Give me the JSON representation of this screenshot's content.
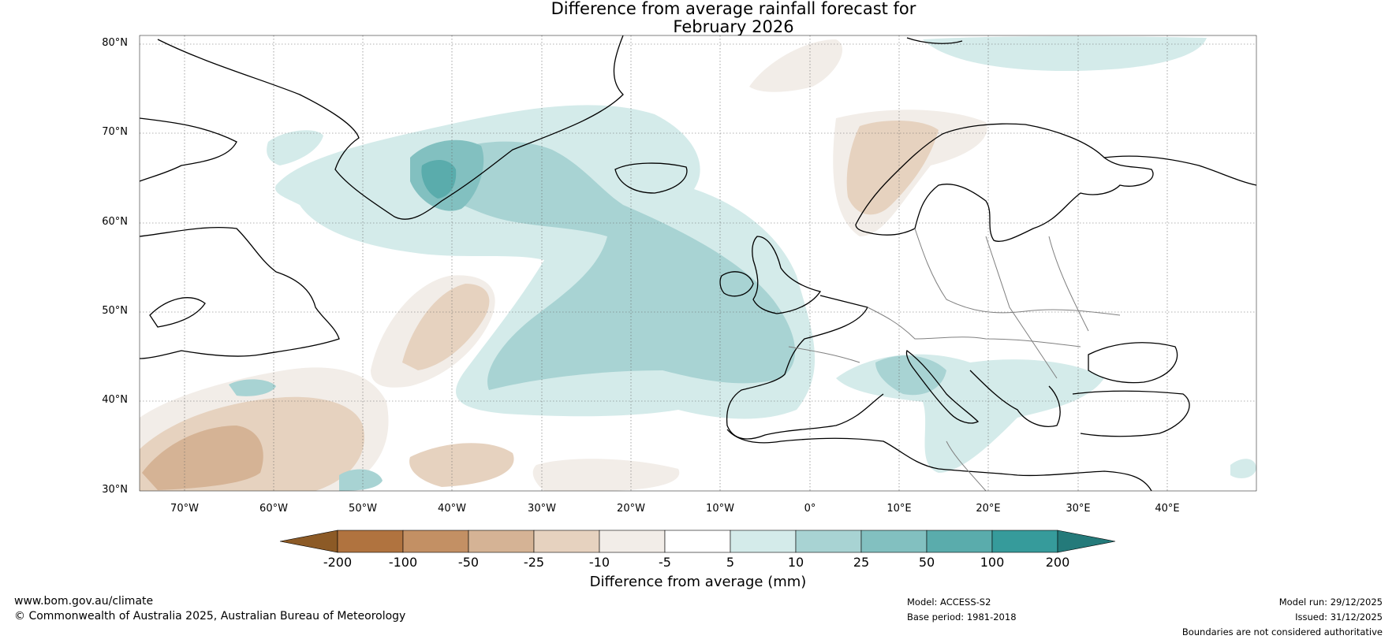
{
  "title": {
    "line1": "Difference from average rainfall forecast for",
    "line2": "February 2026"
  },
  "map": {
    "lat_labels": [
      "80°N",
      "70°N",
      "60°N",
      "50°N",
      "40°N",
      "30°N"
    ],
    "lon_labels": [
      "70°W",
      "60°W",
      "50°W",
      "40°W",
      "30°W",
      "20°W",
      "10°W",
      "0°",
      "10°E",
      "20°E",
      "30°E",
      "40°E"
    ],
    "colors": {
      "land_outline": "#000000",
      "border": "#808080",
      "grid": "#555555"
    }
  },
  "legend": {
    "title": "Difference from average (mm)",
    "ticks": [
      "-200",
      "-100",
      "-50",
      "-25",
      "-10",
      "-5",
      "5",
      "10",
      "25",
      "50",
      "100",
      "200"
    ],
    "colors": [
      "#8c5a26",
      "#b0733f",
      "#c39064",
      "#d5b395",
      "#e6d2bf",
      "#f2ede8",
      "#ffffff",
      "#d4ebea",
      "#a8d3d3",
      "#82c0c0",
      "#5aacac",
      "#369b9b",
      "#247a7a"
    ]
  },
  "footer": {
    "url": "www.bom.gov.au/climate",
    "copyright": "© Commonwealth of Australia 2025, Australian Bureau of Meteorology",
    "model": "Model: ACCESS-S2",
    "base_period": "Base period: 1981-2018",
    "model_run": "Model run: 29/12/2025",
    "issued": "Issued: 31/12/2025",
    "disclaimer": "Boundaries are not considered authoritative"
  }
}
